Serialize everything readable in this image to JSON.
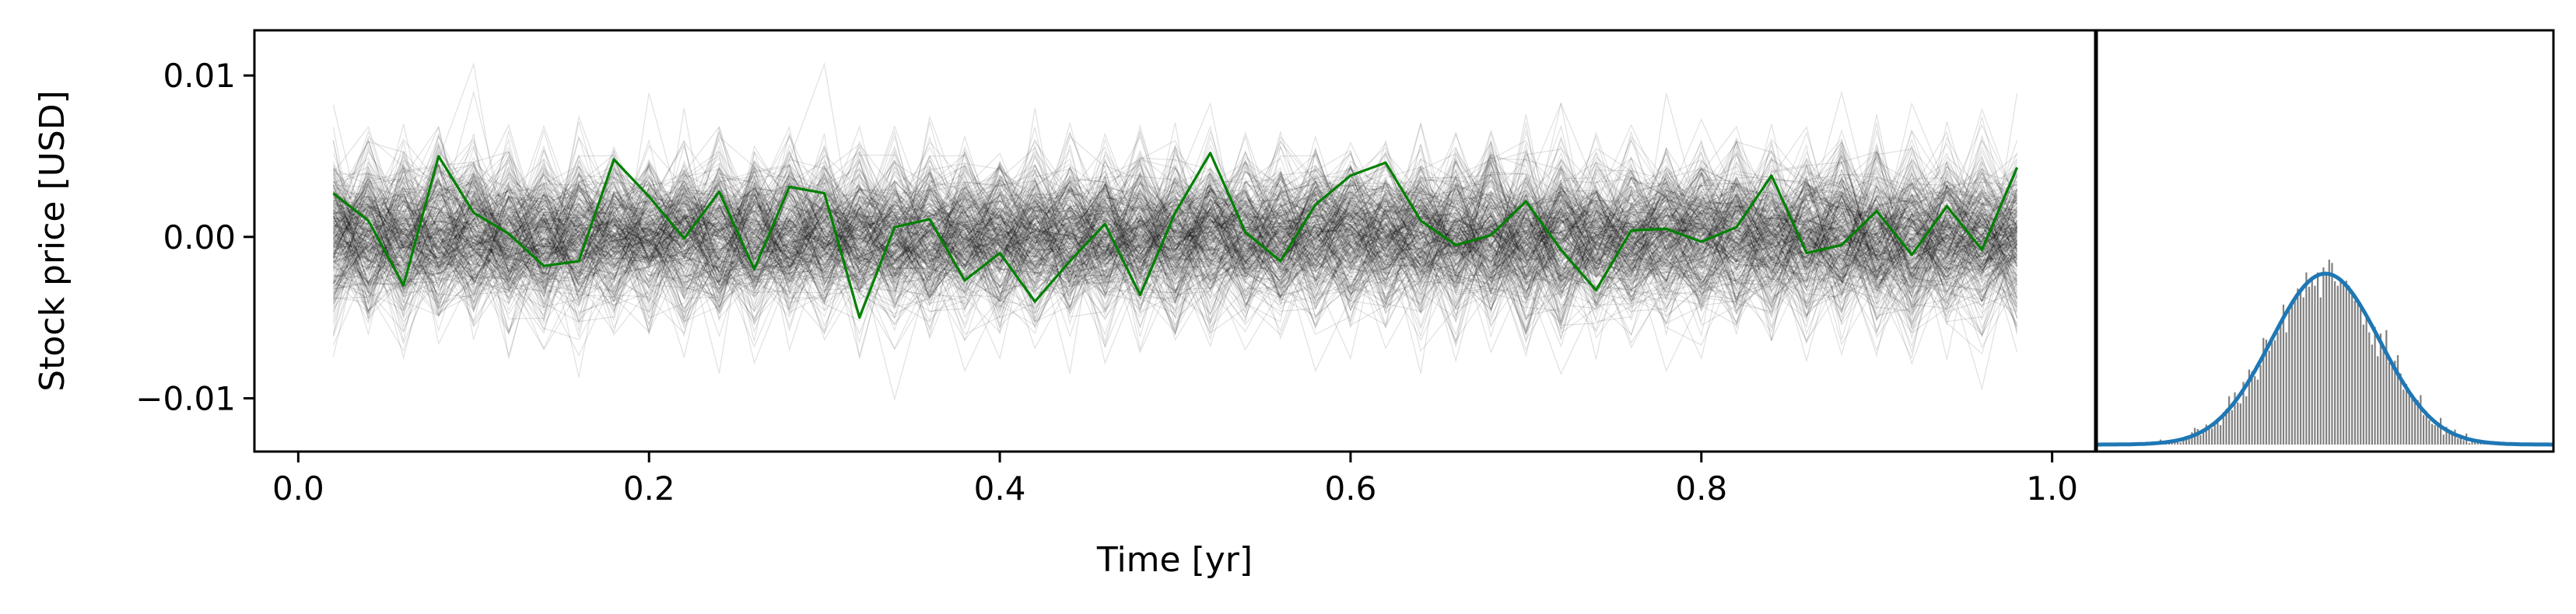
{
  "chart_data": [
    {
      "type": "line",
      "xlabel": "Time [yr]",
      "ylabel": "Stock price [USD]",
      "xlim": [
        -0.025,
        1.025
      ],
      "ylim": [
        -0.0133,
        0.0128
      ],
      "xticks": [
        0.0,
        0.2,
        0.4,
        0.6,
        0.8,
        1.0
      ],
      "xtick_labels": [
        "0.0",
        "0.2",
        "0.4",
        "0.6",
        "0.8",
        "1.0"
      ],
      "yticks": [
        0.01,
        0.0,
        -0.01
      ],
      "ytick_labels": [
        "0.01",
        "0.00",
        "−0.01"
      ],
      "grid": false,
      "background_paths": {
        "count": 300,
        "x": [
          0.02,
          0.98
        ],
        "approx_std": 0.0025,
        "color": "#000000"
      },
      "highlight_series": {
        "color": "#008000",
        "x": [
          0.02,
          0.04,
          0.06,
          0.08,
          0.1,
          0.12,
          0.14,
          0.16,
          0.18,
          0.2,
          0.22,
          0.24,
          0.26,
          0.28,
          0.3,
          0.32,
          0.34,
          0.36,
          0.38,
          0.4,
          0.42,
          0.44,
          0.46,
          0.48,
          0.5,
          0.52,
          0.54,
          0.56,
          0.58,
          0.6,
          0.62,
          0.64,
          0.66,
          0.68,
          0.7,
          0.72,
          0.74,
          0.76,
          0.78,
          0.8,
          0.82,
          0.84,
          0.86,
          0.88,
          0.9,
          0.92,
          0.94,
          0.96,
          0.98
        ],
        "y": [
          0.0027,
          0.001,
          -0.003,
          0.005,
          0.0015,
          0.0002,
          -0.0018,
          -0.0015,
          0.0048,
          0.0025,
          -0.0001,
          0.0028,
          -0.002,
          0.0031,
          0.0027,
          -0.005,
          0.0006,
          0.0011,
          -0.0027,
          -0.001,
          -0.004,
          -0.0015,
          0.0008,
          -0.0036,
          0.0015,
          0.0052,
          0.0003,
          -0.0015,
          0.002,
          0.0038,
          0.0046,
          0.001,
          -0.0005,
          0.0001,
          0.0022,
          -0.0008,
          -0.0033,
          0.0004,
          0.0005,
          -0.0003,
          0.0006,
          0.0038,
          -0.001,
          -0.0005,
          0.0016,
          -0.0011,
          0.0019,
          -0.0008,
          0.0043
        ]
      }
    },
    {
      "type": "histogram",
      "orientation": "vertical",
      "bar_color": "#808080",
      "center": 0.0,
      "spread": 0.0025,
      "pdf_curve": {
        "type": "normal",
        "mean": 0.0,
        "std": 0.0025,
        "color": "#1f77b4"
      },
      "xticks": [],
      "yticks": []
    }
  ]
}
